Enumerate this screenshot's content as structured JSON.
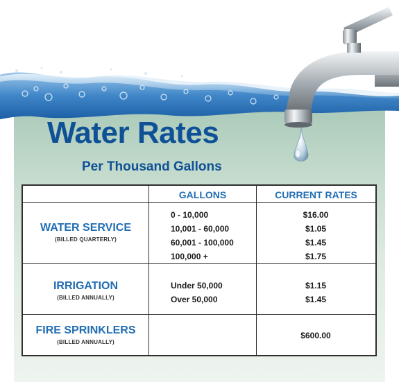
{
  "title": "Water Rates",
  "subtitle": "Per Thousand Gallons",
  "table": {
    "headers": [
      "",
      "GALLONS",
      "CURRENT RATES"
    ],
    "rows": [
      {
        "service": "WATER SERVICE",
        "billing": "(BILLED QUARTERLY)",
        "gallons": [
          "0 - 10,000",
          "10,001 - 60,000",
          "60,001 - 100,000",
          "100,000 +"
        ],
        "rates": [
          "$16.00",
          "$1.05",
          "$1.45",
          "$1.75"
        ]
      },
      {
        "service": "IRRIGATION",
        "billing": "(BILLED ANNUALLY)",
        "gallons": [
          "Under 50,000",
          "Over 50,000"
        ],
        "rates": [
          "$1.15",
          "$1.45"
        ]
      },
      {
        "service": "FIRE SPRINKLERS",
        "billing": "(BILLED ANNUALLY)",
        "gallons": [],
        "rates": [
          "$600.00"
        ]
      }
    ]
  },
  "colors": {
    "title": "#0f5196",
    "header_text": "#1f6db3",
    "panel": "#c9ded0",
    "border": "#2e2e2e"
  },
  "icons": [
    "water-wave-image",
    "faucet-icon",
    "water-drop-icon"
  ]
}
